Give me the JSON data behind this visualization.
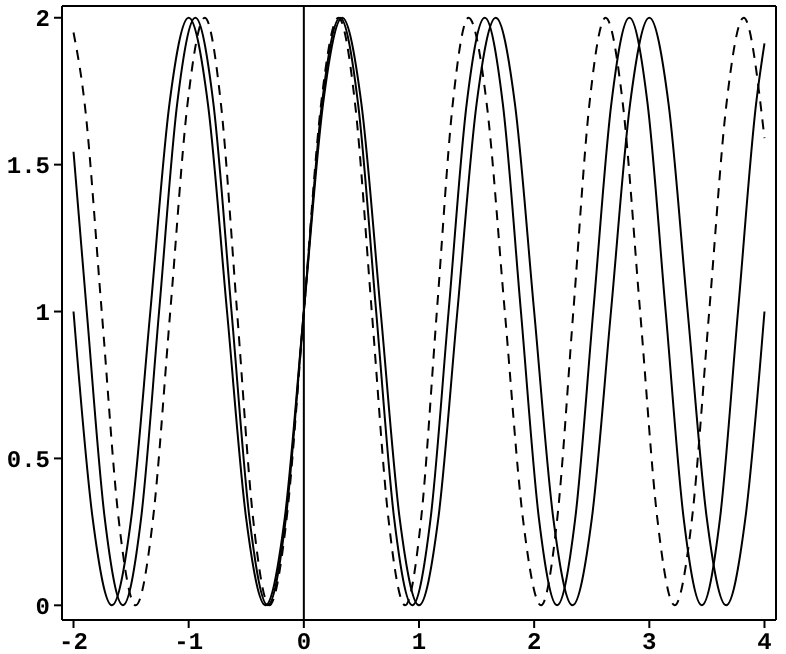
{
  "chart_data": {
    "type": "line",
    "xlim": [
      -2.1,
      4.1
    ],
    "xticks": [
      -2,
      -1,
      0,
      1,
      2,
      3,
      4
    ],
    "ylim": [
      -0.05,
      2.04
    ],
    "yticks": [
      0,
      0.5,
      1,
      1.5,
      2
    ],
    "marker": "none",
    "ref_lines": [
      {
        "axis": "x",
        "value": 0,
        "color": "#000000"
      }
    ],
    "series": [
      {
        "color": "#000000",
        "line_style": "solid",
        "x": [
          -2,
          -1.833,
          -1.667,
          -1.5,
          -1.333,
          -1.167,
          -1,
          -0.833,
          -0.667,
          -0.5,
          -0.333,
          -0.167,
          0,
          0.167,
          0.333,
          0.5,
          0.667,
          0.833,
          1,
          1.167,
          1.333,
          1.5,
          1.667,
          1.833,
          2,
          2.167,
          2.333,
          2.5,
          2.667,
          2.833,
          3,
          3.167,
          3.333,
          3.5,
          3.667,
          3.833,
          4
        ],
        "values": [
          1,
          0.293,
          0,
          0.293,
          1,
          1.707,
          2,
          1.707,
          1,
          0.293,
          0,
          0.293,
          1,
          1.707,
          2,
          1.707,
          1,
          0.293,
          0,
          0.293,
          1,
          1.707,
          2,
          1.707,
          1,
          0.293,
          0,
          0.293,
          1,
          1.707,
          2,
          1.707,
          1,
          0.293,
          0,
          0.293,
          1
        ]
      },
      {
        "color": "#000000",
        "line_style": "solid",
        "x": [
          -2,
          -1.885,
          -1.728,
          -1.571,
          -1.414,
          -1.257,
          -1.1,
          -0.942,
          -0.785,
          -0.628,
          -0.471,
          -0.314,
          -0.157,
          0,
          0.157,
          0.314,
          0.471,
          0.628,
          0.785,
          0.942,
          1.1,
          1.257,
          1.414,
          1.571,
          1.728,
          1.885,
          2.042,
          2.199,
          2.356,
          2.513,
          2.67,
          2.827,
          2.985,
          3.142,
          3.299,
          3.456,
          3.613,
          3.77,
          3.927,
          4
        ],
        "values": [
          1.544,
          1,
          0.293,
          0,
          0.293,
          1,
          1.707,
          2,
          1.707,
          1,
          0.293,
          0,
          0.293,
          1,
          1.707,
          2,
          1.707,
          1,
          0.293,
          0,
          0.293,
          1,
          1.707,
          2,
          1.707,
          1,
          0.293,
          0,
          0.293,
          1,
          1.707,
          2,
          1.707,
          1,
          0.293,
          0,
          0.293,
          1,
          1.707,
          1.913
        ]
      },
      {
        "color": "#000000",
        "line_style": "dashed",
        "x": [
          -2,
          -1.903,
          -1.755,
          -1.608,
          -1.46,
          -1.31,
          -1.16,
          -1.01,
          -0.86,
          -0.72,
          -0.58,
          -0.44,
          -0.3,
          -0.15,
          0,
          0.15,
          0.3,
          0.445,
          0.59,
          0.735,
          0.88,
          1.018,
          1.155,
          1.293,
          1.43,
          1.588,
          1.745,
          1.903,
          2.06,
          2.2,
          2.34,
          2.48,
          2.62,
          2.77,
          2.92,
          3.07,
          3.22,
          3.37,
          3.52,
          3.67,
          3.82,
          4
        ],
        "values": [
          1.95,
          1.707,
          1,
          0.293,
          0,
          0.293,
          1,
          1.707,
          2,
          1.707,
          1,
          0.293,
          0,
          0.293,
          1,
          1.707,
          2,
          1.707,
          1,
          0.293,
          0,
          0.293,
          1,
          1.707,
          2,
          1.707,
          1,
          0.293,
          0,
          0.293,
          1,
          1.707,
          2,
          1.707,
          1,
          0.293,
          0,
          0.293,
          1,
          1.707,
          2,
          1.59
        ]
      }
    ]
  }
}
